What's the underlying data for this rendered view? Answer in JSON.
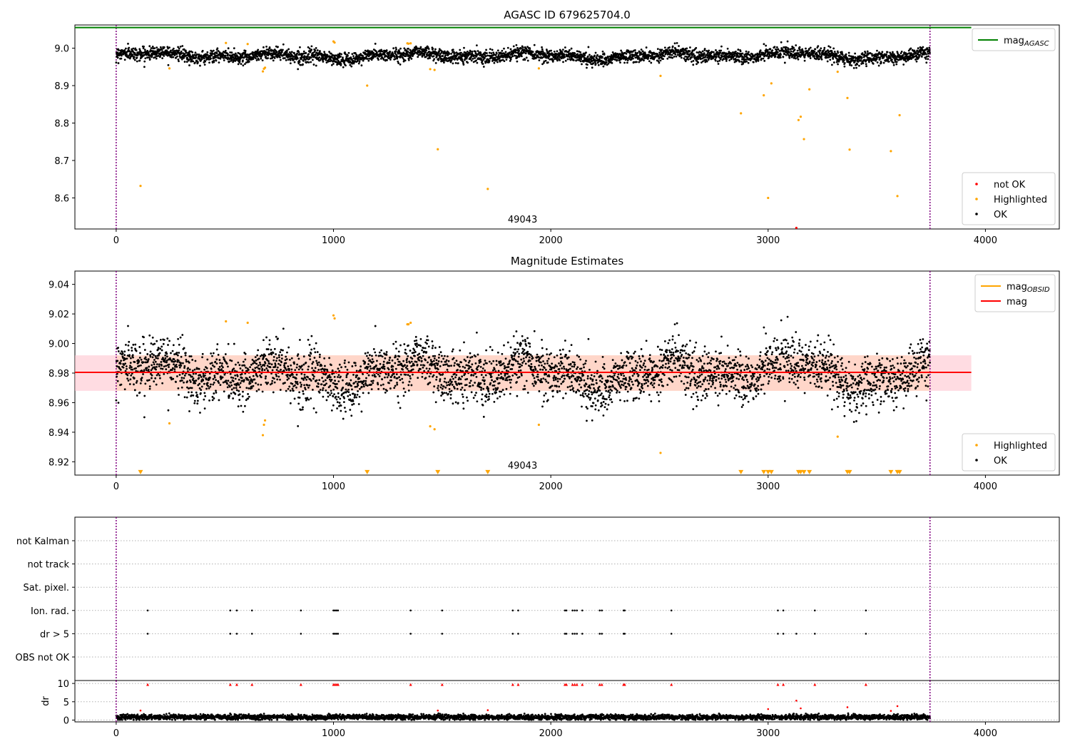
{
  "colors": {
    "ok": "#000000",
    "highlighted": "#ffa500",
    "not_ok": "#ff0000",
    "mag_agasc": "#008000",
    "mag_obsid": "#ffa500",
    "mag": "#ff0000",
    "vline": "#800080",
    "band_fill": "#ffc0cb",
    "band_fill2": "#ffd2b4"
  },
  "chart_data": [
    {
      "type": "scatter",
      "title": "AGASC ID 679625704.0",
      "xlim": [
        -190,
        4340
      ],
      "ylim": [
        8.517,
        9.062
      ],
      "xticks": [
        0,
        1000,
        2000,
        3000,
        4000
      ],
      "yticks": [
        8.6,
        8.7,
        8.8,
        8.9,
        9.0
      ],
      "annotation": {
        "text": "49043",
        "x": 1870
      },
      "obs_bounds": [
        0,
        3745
      ],
      "hlines": [
        {
          "name": "mag_AGASC",
          "y": 9.055,
          "x": [
            -190,
            3935
          ]
        }
      ],
      "ok_series": {
        "name": "OK",
        "n": 3740,
        "baseline": 8.98,
        "spread": 0.012
      },
      "highlighted": {
        "name": "Highlighted",
        "x": [
          112,
          245,
          505,
          605,
          675,
          680,
          685,
          1000,
          1005,
          1155,
          1340,
          1345,
          1355,
          1445,
          1465,
          1480,
          1710,
          1945,
          2505,
          2875,
          2980,
          3000,
          3015,
          3140,
          3150,
          3165,
          3190,
          3320,
          3365,
          3375,
          3565,
          3595,
          3605
        ],
        "y": [
          8.632,
          8.946,
          9.014,
          9.011,
          8.938,
          8.945,
          8.948,
          9.018,
          9.015,
          8.9,
          9.013,
          9.012,
          9.013,
          8.944,
          8.942,
          8.73,
          8.624,
          8.946,
          8.926,
          8.826,
          8.874,
          8.6,
          8.906,
          8.808,
          8.817,
          8.757,
          8.89,
          8.937,
          8.867,
          8.729,
          8.725,
          8.605,
          8.821
        ]
      },
      "not_ok": {
        "name": "not OK",
        "x": [
          3130
        ],
        "y": [
          8.52
        ]
      },
      "legends": [
        {
          "position": "top-right",
          "entries": [
            {
              "label": "mag",
              "sub": "AGASC",
              "kind": "line",
              "color_key": "mag_agasc"
            }
          ]
        },
        {
          "position": "lower-right",
          "entries": [
            {
              "label": "not OK",
              "kind": "dot",
              "color_key": "not_ok"
            },
            {
              "label": "Highlighted",
              "kind": "dot",
              "color_key": "highlighted"
            },
            {
              "label": "OK",
              "kind": "dot",
              "color_key": "ok"
            }
          ]
        }
      ]
    },
    {
      "type": "scatter",
      "title": "Magnitude Estimates",
      "xlim": [
        -190,
        4340
      ],
      "ylim": [
        8.911,
        9.049
      ],
      "xticks": [
        0,
        1000,
        2000,
        3000,
        4000
      ],
      "yticks": [
        8.92,
        8.94,
        8.96,
        8.98,
        9.0,
        9.02,
        9.04
      ],
      "annotation": {
        "text": "49043",
        "x": 1870
      },
      "obs_bounds": [
        0,
        3745
      ],
      "band": {
        "y": [
          8.968,
          8.992
        ],
        "x": [
          -190,
          3935
        ]
      },
      "hlines": [
        {
          "name": "mag_OBSID",
          "y": 8.9805,
          "x": [
            0,
            3745
          ]
        },
        {
          "name": "mag",
          "y": 8.9805,
          "x": [
            -190,
            3935
          ]
        }
      ],
      "ok_series": {
        "name": "OK",
        "n": 3740,
        "baseline": 8.98,
        "spread": 0.012
      },
      "highlighted": {
        "name": "Highlighted",
        "x": [
          245,
          505,
          605,
          675,
          680,
          685,
          1000,
          1005,
          1340,
          1345,
          1355,
          1445,
          1465,
          1945,
          2505,
          3320
        ],
        "y": [
          8.946,
          9.015,
          9.014,
          8.938,
          8.945,
          8.948,
          9.019,
          9.017,
          9.013,
          9.013,
          9.014,
          8.944,
          8.942,
          8.945,
          8.926,
          8.937
        ]
      },
      "offscale_markers": {
        "x": [
          112,
          1155,
          1480,
          1710,
          2875,
          2980,
          3000,
          3015,
          3140,
          3150,
          3165,
          3190,
          3365,
          3375,
          3565,
          3595,
          3605
        ],
        "y": 8.913
      },
      "legends": [
        {
          "position": "top-right",
          "entries": [
            {
              "label": "mag",
              "sub": "OBSID",
              "kind": "line",
              "color_key": "mag_obsid"
            },
            {
              "label": "mag",
              "kind": "line",
              "color_key": "mag"
            }
          ]
        },
        {
          "position": "lower-right",
          "entries": [
            {
              "label": "Highlighted",
              "kind": "dot",
              "color_key": "highlighted"
            },
            {
              "label": "OK",
              "kind": "dot",
              "color_key": "ok"
            }
          ]
        }
      ]
    },
    {
      "type": "scatter",
      "title": "",
      "xlim": [
        -190,
        4340
      ],
      "obs_bounds": [
        0,
        3745
      ],
      "flag_rows": [
        "not Kalman",
        "not track",
        "Sat. pixel.",
        "Ion. rad.",
        "dr > 5",
        "OBS not OK"
      ],
      "flag_events": {
        "Ion. rad.": [
          145,
          525,
          555,
          625,
          850,
          1000,
          1007,
          1014,
          1021,
          1355,
          1500,
          1825,
          1850,
          2065,
          2072,
          2100,
          2110,
          2120,
          2145,
          2225,
          2235,
          2335,
          2340,
          2555,
          3045,
          3070,
          3215,
          3450
        ],
        "dr > 5": [
          145,
          525,
          555,
          625,
          850,
          1000,
          1007,
          1014,
          1021,
          1355,
          1500,
          1825,
          1850,
          2065,
          2072,
          2100,
          2110,
          2120,
          2145,
          2225,
          2235,
          2335,
          2340,
          2555,
          3045,
          3070,
          3130,
          3215,
          3450
        ]
      }
    },
    {
      "type": "scatter",
      "title": "",
      "xlim": [
        -190,
        4340
      ],
      "ylim": [
        -0.5,
        10.8
      ],
      "xticks": [
        0,
        1000,
        2000,
        3000,
        4000
      ],
      "yticks": [
        0,
        5,
        10
      ],
      "ylabel": "dr",
      "obs_bounds": [
        0,
        3745
      ],
      "ok_series": {
        "name": "dr",
        "n": 3740,
        "baseline": 0.8,
        "spread": 0.35
      },
      "clipped": {
        "y": 9.7,
        "x": [
          145,
          525,
          555,
          625,
          850,
          1000,
          1007,
          1014,
          1021,
          1355,
          1500,
          1825,
          1850,
          2065,
          2072,
          2100,
          2110,
          2120,
          2145,
          2225,
          2235,
          2335,
          2340,
          2555,
          3045,
          3070,
          3215,
          3450
        ]
      },
      "outliers": {
        "x": [
          112,
          1480,
          1710,
          3000,
          3130,
          3150,
          3365,
          3565,
          3595
        ],
        "y": [
          2.6,
          2.6,
          2.7,
          3.0,
          5.3,
          3.2,
          3.5,
          2.5,
          3.8
        ]
      }
    }
  ]
}
